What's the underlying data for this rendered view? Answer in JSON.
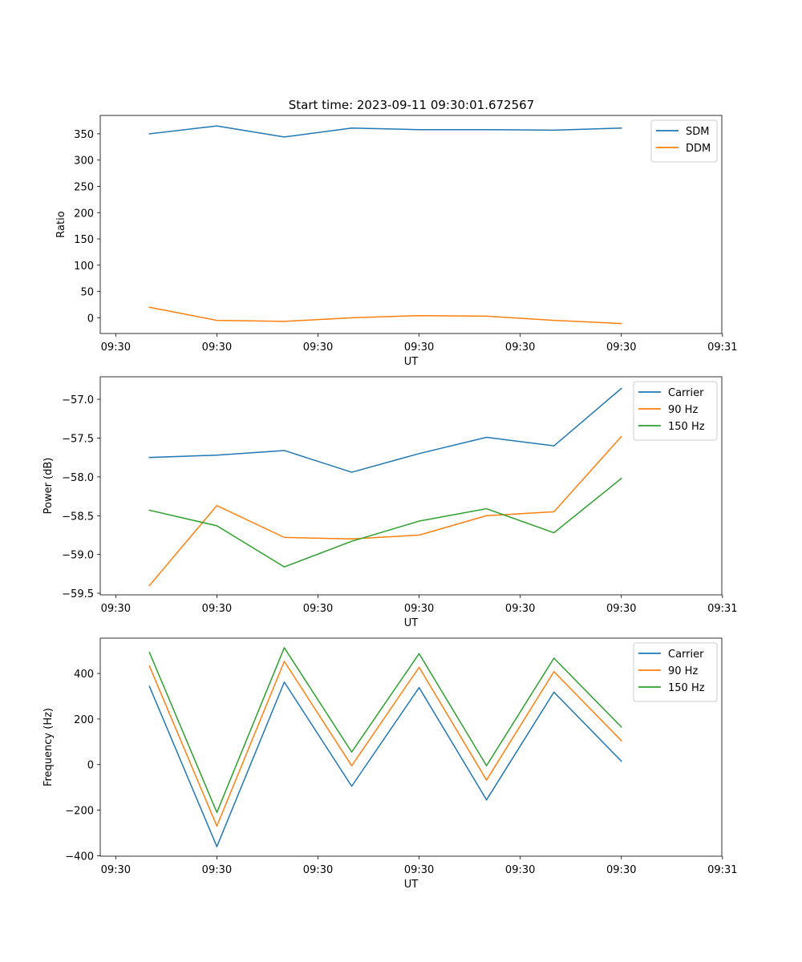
{
  "figure_title": "Start time: 2023-09-11 09:30:01.672567",
  "chart_data": [
    {
      "type": "line",
      "title": "Start time: 2023-09-11 09:30:01.672567",
      "xlabel": "UT",
      "ylabel": "Ratio",
      "x": [
        1.0,
        2.0,
        3.0,
        4.0,
        5.0,
        6.0,
        7.0,
        8.0
      ],
      "xlim": [
        0.27,
        9.49
      ],
      "xticks": [
        0.5,
        2.0,
        3.5,
        5.0,
        6.5,
        8.0,
        9.5
      ],
      "xtick_labels": [
        "09:30",
        "09:30",
        "09:30",
        "09:30",
        "09:30",
        "09:30",
        "09:31"
      ],
      "ylim": [
        -30,
        385
      ],
      "yticks": [
        0,
        50,
        100,
        150,
        200,
        250,
        300,
        350
      ],
      "ytick_labels": [
        "0",
        "50",
        "100",
        "150",
        "200",
        "250",
        "300",
        "350"
      ],
      "legend_position": "top-right",
      "series": [
        {
          "name": "SDM",
          "color": "#1f77b4",
          "values": [
            350,
            365,
            344,
            361,
            358,
            358,
            357,
            361
          ]
        },
        {
          "name": "DDM",
          "color": "#ff7f0e",
          "values": [
            20,
            -5,
            -7,
            0,
            4,
            3,
            -5,
            -11
          ]
        }
      ]
    },
    {
      "type": "line",
      "title": "",
      "xlabel": "UT",
      "ylabel": "Power (dB)",
      "x": [
        1.0,
        2.0,
        3.0,
        4.0,
        5.0,
        6.0,
        7.0,
        8.0
      ],
      "xlim": [
        0.27,
        9.49
      ],
      "xticks": [
        0.5,
        2.0,
        3.5,
        5.0,
        6.5,
        8.0,
        9.5
      ],
      "xtick_labels": [
        "09:30",
        "09:30",
        "09:30",
        "09:30",
        "09:30",
        "09:30",
        "09:31"
      ],
      "ylim": [
        -59.52,
        -56.71
      ],
      "yticks": [
        -59.5,
        -59.0,
        -58.5,
        -58.0,
        -57.5,
        -57.0
      ],
      "ytick_labels": [
        "−59.5",
        "−59.0",
        "−58.5",
        "−58.0",
        "−57.5",
        "−57.0"
      ],
      "legend_position": "top-right",
      "series": [
        {
          "name": "Carrier",
          "color": "#1f77b4",
          "values": [
            -57.75,
            -57.72,
            -57.66,
            -57.94,
            -57.7,
            -57.49,
            -57.6,
            -56.86
          ]
        },
        {
          "name": "90 Hz",
          "color": "#ff7f0e",
          "values": [
            -59.4,
            -58.37,
            -58.78,
            -58.8,
            -58.75,
            -58.5,
            -58.45,
            -57.48
          ]
        },
        {
          "name": "150 Hz",
          "color": "#2ca02c",
          "values": [
            -58.43,
            -58.63,
            -59.16,
            -58.83,
            -58.57,
            -58.41,
            -58.72,
            -58.02
          ]
        }
      ]
    },
    {
      "type": "line",
      "title": "",
      "xlabel": "UT",
      "ylabel": "Frequency (Hz)",
      "x": [
        1.0,
        2.0,
        3.0,
        4.0,
        5.0,
        6.0,
        7.0,
        8.0
      ],
      "xlim": [
        0.27,
        9.49
      ],
      "xticks": [
        0.5,
        2.0,
        3.5,
        5.0,
        6.5,
        8.0,
        9.5
      ],
      "xtick_labels": [
        "09:30",
        "09:30",
        "09:30",
        "09:30",
        "09:30",
        "09:30",
        "09:31"
      ],
      "ylim": [
        -402,
        555
      ],
      "yticks": [
        -400,
        -200,
        0,
        200,
        400
      ],
      "ytick_labels": [
        "−400",
        "−200",
        "0",
        "200",
        "400"
      ],
      "legend_position": "top-right",
      "series": [
        {
          "name": "Carrier",
          "color": "#1f77b4",
          "values": [
            343,
            -360,
            362,
            -95,
            338,
            -155,
            318,
            15
          ]
        },
        {
          "name": "90 Hz",
          "color": "#ff7f0e",
          "values": [
            432,
            -270,
            453,
            -5,
            427,
            -68,
            408,
            105
          ]
        },
        {
          "name": "150 Hz",
          "color": "#2ca02c",
          "values": [
            492,
            -210,
            513,
            55,
            487,
            -5,
            467,
            165
          ]
        }
      ]
    }
  ]
}
